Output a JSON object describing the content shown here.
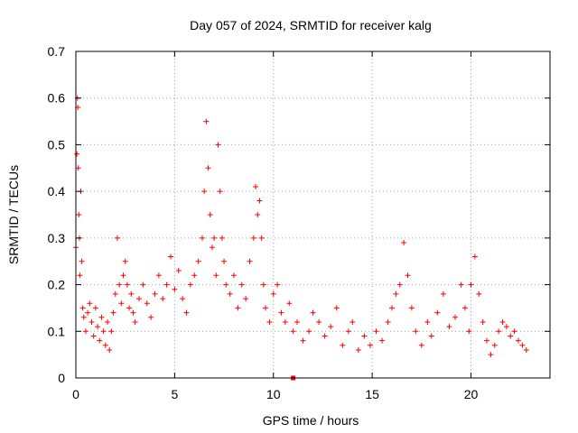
{
  "chart_data": {
    "type": "scatter",
    "title": "Day 057 of 2024, SRMTID for receiver kalg",
    "xlabel": "GPS time / hours",
    "ylabel": "SRMTID / TECUs",
    "xlim": [
      0,
      24
    ],
    "ylim": [
      0,
      0.7
    ],
    "x_ticks": [
      0,
      5,
      10,
      15,
      20
    ],
    "x_tick_labels": [
      "0",
      "5",
      "10",
      "15",
      "20"
    ],
    "y_ticks": [
      0,
      0.1,
      0.2,
      0.3,
      0.4,
      0.5,
      0.6,
      0.7
    ],
    "y_tick_labels": [
      "0",
      "0.1",
      "0.2",
      "0.3",
      "0.4",
      "0.5",
      "0.6",
      "0.7"
    ],
    "grid": true,
    "marker": "+",
    "series": [
      {
        "name": "SRMTID",
        "color": "#ff0000",
        "x": [
          0.0,
          0.05,
          0.08,
          0.1,
          0.12,
          0.15,
          0.18,
          0.2,
          0.25,
          0.3,
          0.35,
          0.4,
          0.5,
          0.6,
          0.7,
          0.8,
          0.9,
          1.0,
          1.1,
          1.2,
          1.3,
          1.4,
          1.5,
          1.6,
          1.7,
          1.8,
          1.9,
          2.0,
          2.1,
          2.2,
          2.3,
          2.4,
          2.5,
          2.6,
          2.7,
          2.8,
          2.9,
          3.0,
          3.2,
          3.4,
          3.6,
          3.8,
          4.0,
          4.2,
          4.4,
          4.6,
          4.8,
          5.0,
          5.2,
          5.4,
          5.6,
          5.8,
          6.0,
          6.2,
          6.4,
          6.5,
          6.6,
          6.7,
          6.8,
          6.9,
          7.0,
          7.1,
          7.2,
          7.3,
          7.4,
          7.5,
          7.6,
          7.8,
          8.0,
          8.2,
          8.4,
          8.6,
          8.8,
          9.0,
          9.1,
          9.2,
          9.3,
          9.4,
          9.5,
          9.6,
          9.8,
          10.0,
          10.2,
          10.4,
          10.6,
          10.8,
          11.0,
          11.2,
          11.5,
          11.8,
          12.0,
          12.3,
          12.6,
          12.9,
          13.2,
          13.5,
          13.8,
          14.0,
          14.3,
          14.6,
          14.9,
          15.2,
          15.5,
          15.8,
          16.0,
          16.2,
          16.4,
          16.6,
          16.8,
          17.0,
          17.2,
          17.5,
          17.8,
          18.0,
          18.3,
          18.6,
          18.9,
          19.2,
          19.5,
          19.7,
          19.9,
          20.0,
          20.2,
          20.4,
          20.6,
          20.8,
          21.0,
          21.2,
          21.4,
          21.6,
          21.8,
          22.0,
          22.2,
          22.4,
          22.6,
          22.8
        ],
        "y": [
          0.28,
          0.48,
          0.6,
          0.58,
          0.45,
          0.35,
          0.3,
          0.22,
          0.4,
          0.25,
          0.15,
          0.13,
          0.1,
          0.14,
          0.16,
          0.12,
          0.09,
          0.15,
          0.11,
          0.08,
          0.13,
          0.1,
          0.07,
          0.12,
          0.06,
          0.1,
          0.14,
          0.18,
          0.3,
          0.2,
          0.16,
          0.22,
          0.25,
          0.2,
          0.15,
          0.18,
          0.14,
          0.12,
          0.17,
          0.2,
          0.16,
          0.13,
          0.18,
          0.22,
          0.17,
          0.2,
          0.26,
          0.19,
          0.23,
          0.17,
          0.14,
          0.2,
          0.22,
          0.25,
          0.3,
          0.4,
          0.55,
          0.45,
          0.35,
          0.28,
          0.3,
          0.22,
          0.5,
          0.4,
          0.3,
          0.25,
          0.2,
          0.18,
          0.22,
          0.15,
          0.2,
          0.17,
          0.25,
          0.3,
          0.41,
          0.35,
          0.38,
          0.3,
          0.2,
          0.15,
          0.12,
          0.18,
          0.2,
          0.14,
          0.12,
          0.16,
          0.1,
          0.12,
          0.08,
          0.1,
          0.14,
          0.12,
          0.09,
          0.11,
          0.15,
          0.07,
          0.1,
          0.12,
          0.06,
          0.09,
          0.07,
          0.1,
          0.08,
          0.12,
          0.15,
          0.18,
          0.2,
          0.29,
          0.22,
          0.15,
          0.1,
          0.07,
          0.12,
          0.09,
          0.14,
          0.18,
          0.11,
          0.13,
          0.2,
          0.15,
          0.1,
          0.2,
          0.26,
          0.18,
          0.12,
          0.08,
          0.05,
          0.07,
          0.1,
          0.12,
          0.11,
          0.09,
          0.1,
          0.08,
          0.07,
          0.06
        ]
      }
    ],
    "annotations": [
      {
        "x": 11.0,
        "y": 0.0,
        "marker": "square",
        "color": "#ff0000"
      }
    ]
  }
}
